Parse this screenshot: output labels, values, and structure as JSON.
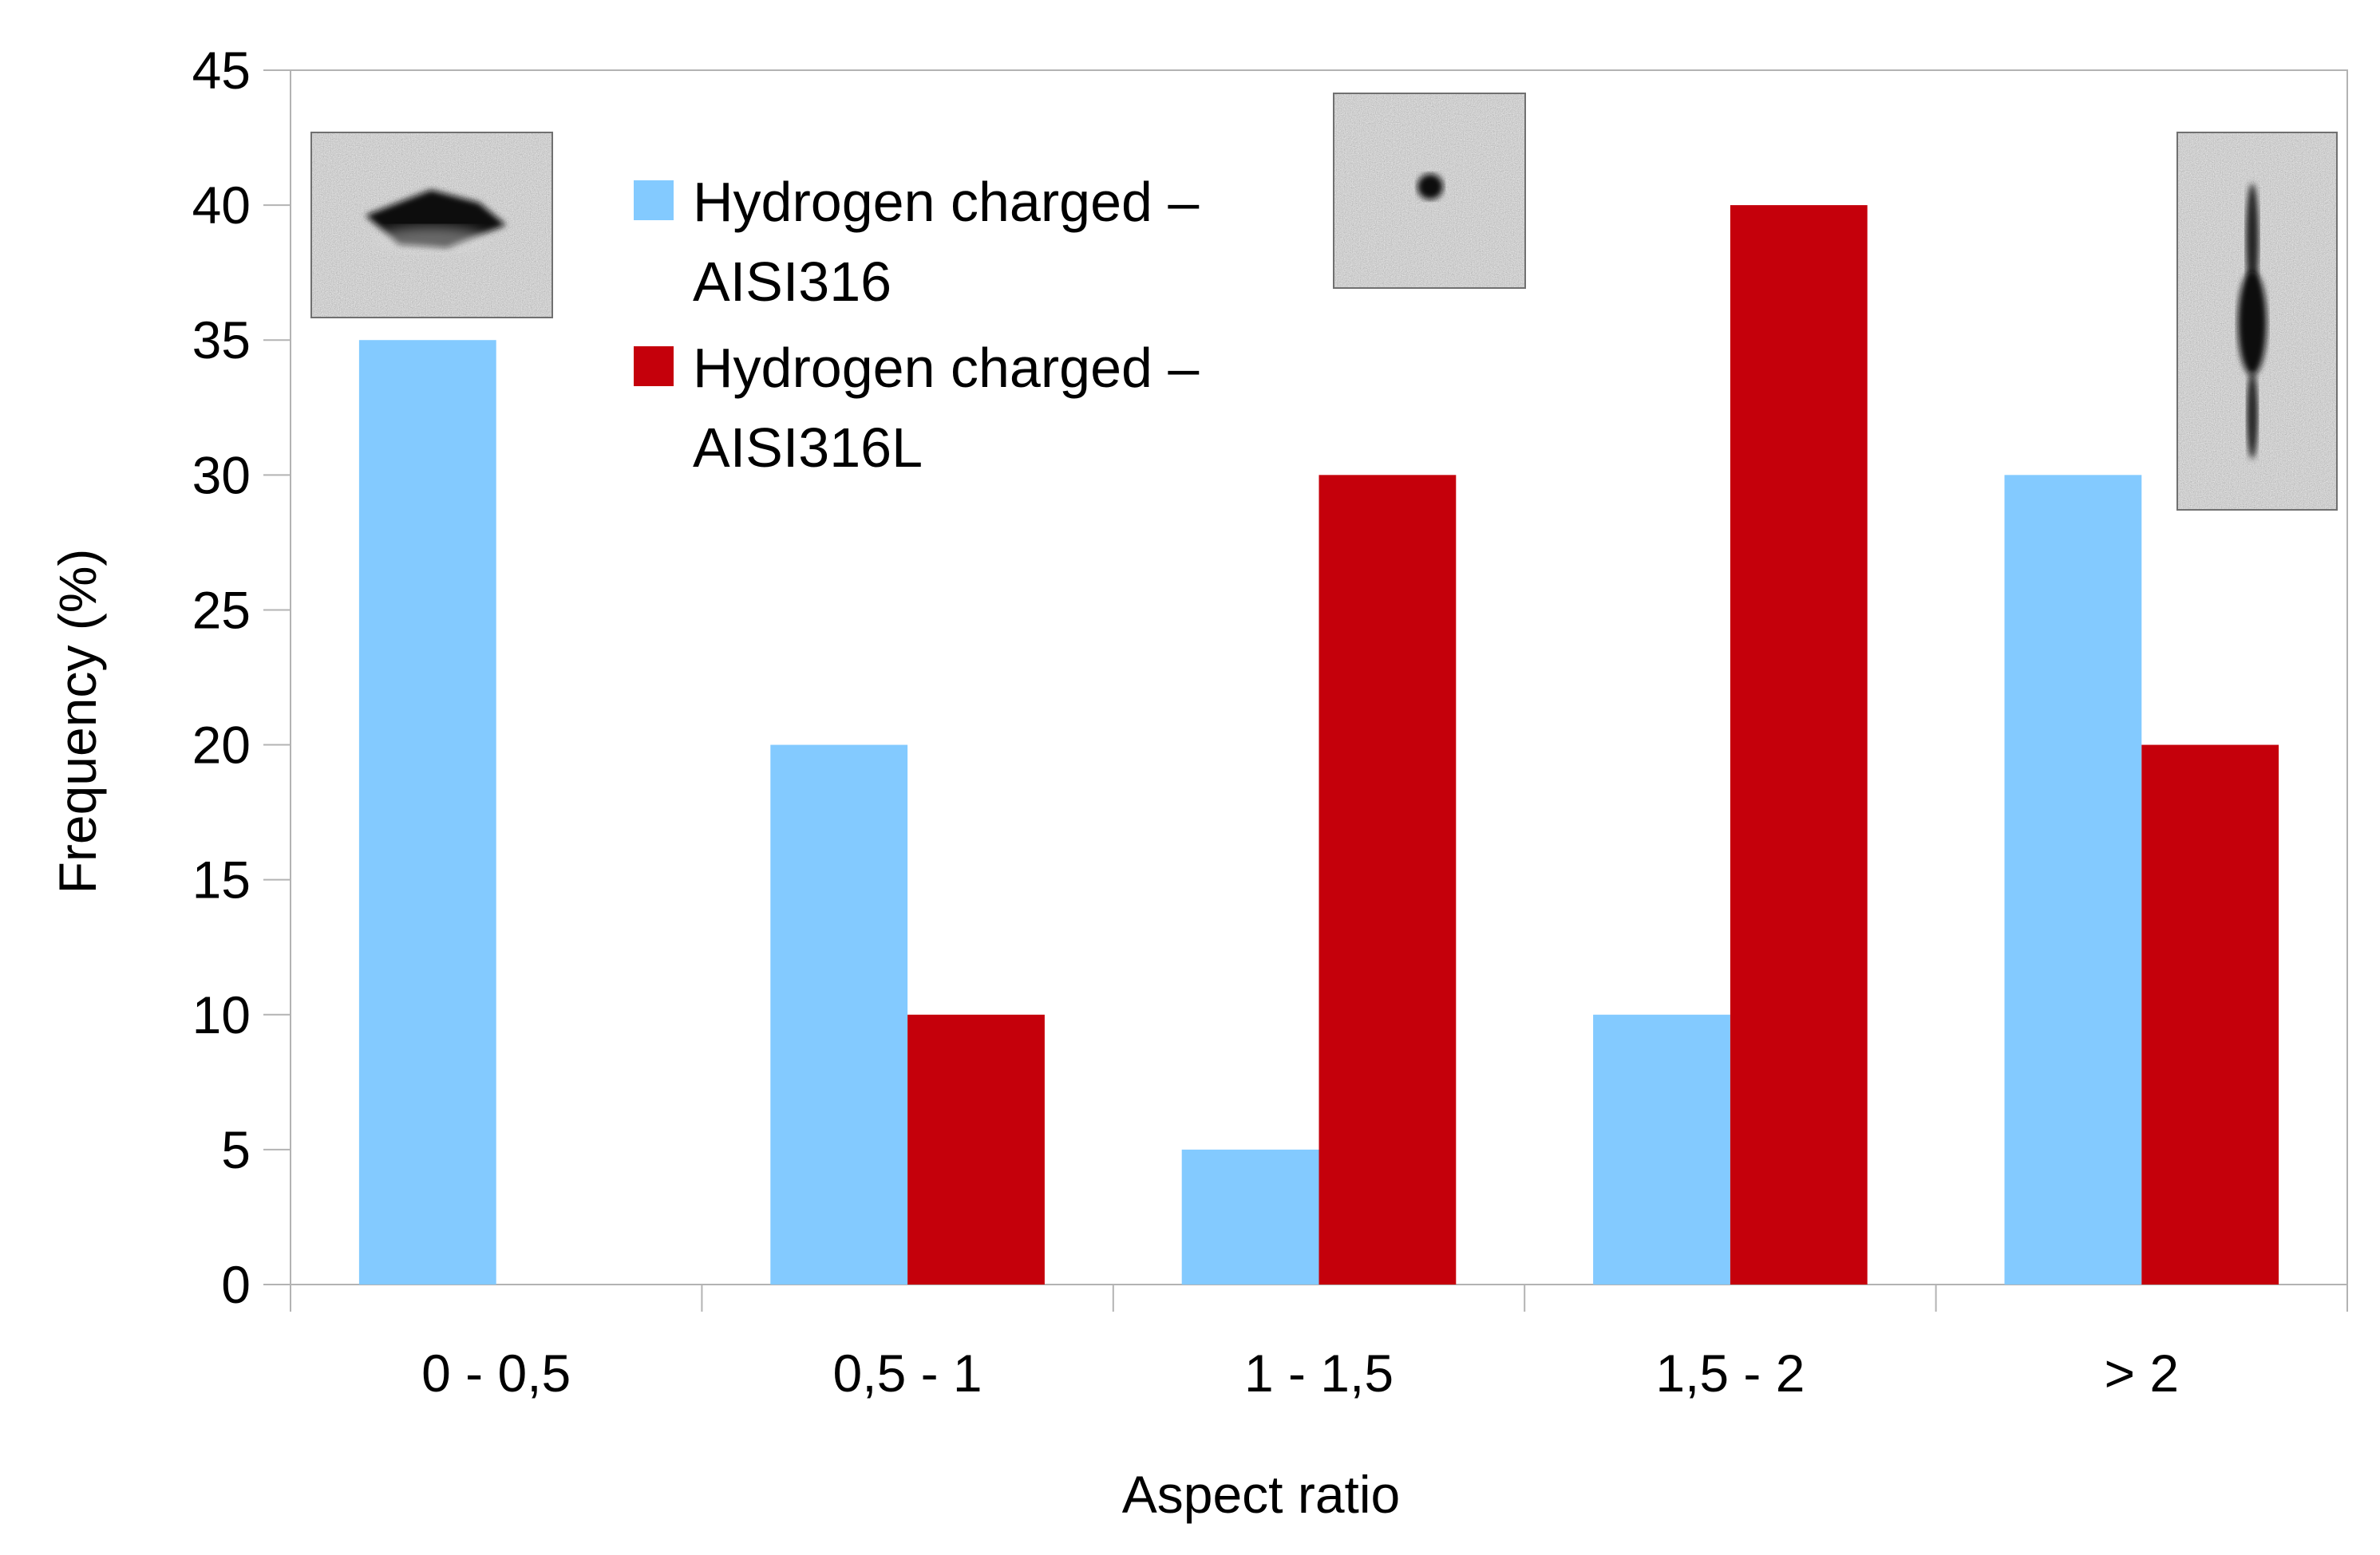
{
  "chart_data": {
    "type": "bar",
    "categories": [
      "0 - 0,5",
      "0,5 - 1",
      "1 - 1,5",
      "1,5 - 2",
      "> 2"
    ],
    "series": [
      {
        "name": "Hydrogen charged – AISI316",
        "name_lines": [
          "Hydrogen charged –",
          "AISI316"
        ],
        "color": "#83caff",
        "values": [
          35,
          20,
          5,
          10,
          30
        ]
      },
      {
        "name": "Hydrogen charged – AISI316L",
        "name_lines": [
          "Hydrogen charged –",
          "AISI316L"
        ],
        "color": "#c5000b",
        "values": [
          0,
          10,
          30,
          40,
          20
        ]
      }
    ],
    "xlabel": "Aspect ratio",
    "ylabel": "Frequency (%)",
    "ylim": [
      0,
      45
    ],
    "yticks": [
      0,
      5,
      10,
      15,
      20,
      25,
      30,
      35,
      40,
      45
    ],
    "grid": false,
    "legend": "top-left",
    "insets": [
      {
        "depicts": "diamond-shaped dark inclusion micrograph",
        "category": "0 - 0,5"
      },
      {
        "depicts": "small round dark inclusion micrograph",
        "category": "1 - 1,5"
      },
      {
        "depicts": "elongated vertical dark inclusion micrograph",
        "category": "> 2"
      }
    ]
  }
}
